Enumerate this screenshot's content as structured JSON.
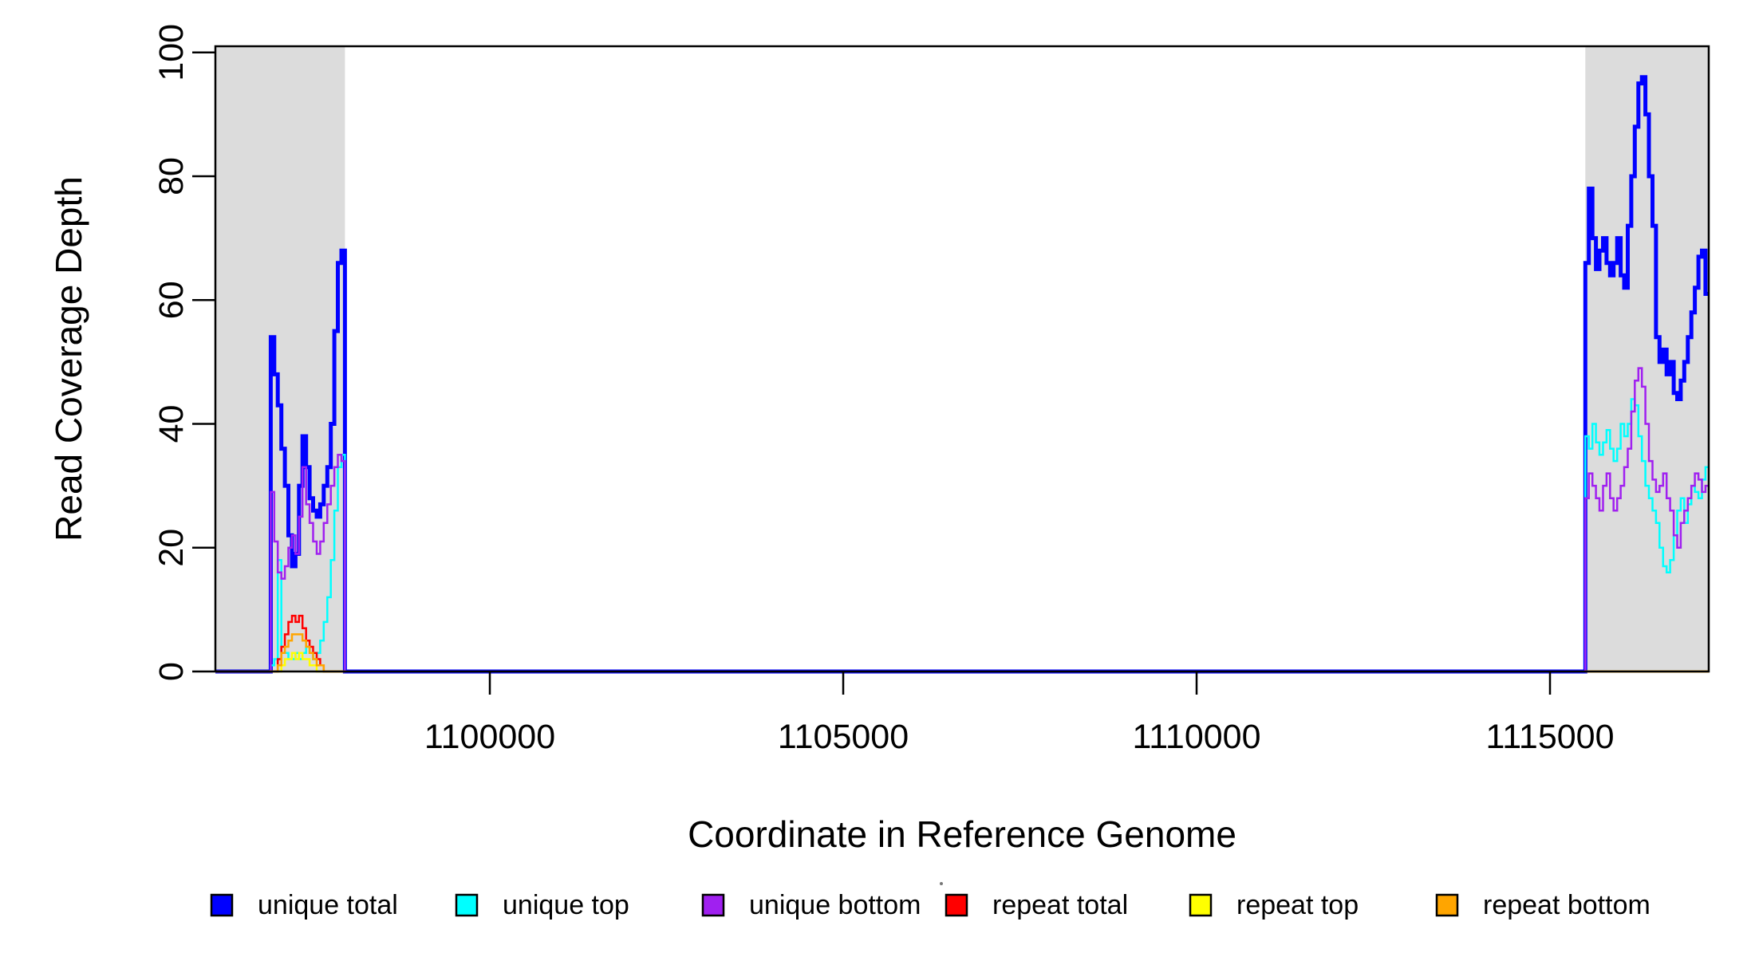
{
  "figure": {
    "background": "#ffffff",
    "plot_box_color": "#000000",
    "shade_color": "#DCDCDC"
  },
  "chart_data": {
    "type": "line",
    "subtype": "step",
    "title": "",
    "xlabel": "Coordinate in Reference Genome",
    "ylabel": "Read Coverage Depth",
    "xlim": [
      1096117,
      1117246
    ],
    "ylim": [
      0,
      101
    ],
    "xticks": [
      1100000,
      1105000,
      1110000,
      1115000
    ],
    "yticks": [
      0,
      20,
      40,
      60,
      80,
      100
    ],
    "grid": false,
    "box": true,
    "legend_position": "bottom",
    "bin_size": 50,
    "shaded_regions": [
      {
        "start": 1096117,
        "end": 1097950
      },
      {
        "start": 1115500,
        "end": 1117246
      }
    ],
    "series": [
      {
        "name": "unique total",
        "color": "#0000FF",
        "line_width": 5,
        "draw": "full",
        "segments": [
          {
            "start": 1096900,
            "values": [
              54,
              48,
              43,
              36,
              30,
              22,
              17,
              19,
              30,
              38,
              33,
              28,
              26,
              25,
              27,
              30,
              33,
              40,
              55,
              66,
              68
            ]
          },
          {
            "start": 1115500,
            "values": [
              66,
              78,
              70,
              65,
              68,
              70,
              66,
              64,
              66,
              70,
              64,
              62,
              72,
              80,
              88,
              95,
              96,
              90,
              80,
              72,
              54,
              50,
              52,
              48,
              50,
              45,
              44,
              47,
              50,
              54,
              58,
              62,
              67,
              68,
              61
            ]
          }
        ]
      },
      {
        "name": "unique top",
        "color": "#00FFFF",
        "line_width": 2.5,
        "draw": "full",
        "segments": [
          {
            "start": 1096900,
            "values": [
              1,
              2,
              18,
              3,
              3,
              2,
              2,
              3,
              2,
              3,
              4,
              3,
              2,
              3,
              5,
              8,
              12,
              18,
              26,
              33,
              35
            ]
          },
          {
            "start": 1115500,
            "values": [
              38,
              36,
              40,
              37,
              35,
              37,
              39,
              36,
              34,
              36,
              40,
              38,
              40,
              44,
              43,
              38,
              34,
              30,
              28,
              26,
              24,
              20,
              17,
              16,
              18,
              22,
              26,
              28,
              24,
              27,
              30,
              29,
              28,
              31,
              33
            ]
          }
        ]
      },
      {
        "name": "unique bottom",
        "color": "#A020F0",
        "line_width": 2.5,
        "draw": "full",
        "segments": [
          {
            "start": 1096900,
            "values": [
              29,
              21,
              16,
              15,
              17,
              20,
              22,
              19,
              25,
              33,
              27,
              24,
              21,
              19,
              21,
              24,
              27,
              30,
              33,
              35,
              34
            ]
          },
          {
            "start": 1115500,
            "values": [
              28,
              32,
              30,
              28,
              26,
              30,
              32,
              28,
              26,
              28,
              30,
              33,
              36,
              42,
              47,
              49,
              46,
              40,
              34,
              31,
              29,
              30,
              32,
              28,
              26,
              22,
              20,
              24,
              26,
              28,
              30,
              32,
              31,
              29,
              30
            ]
          }
        ]
      },
      {
        "name": "repeat total",
        "color": "#FF0000",
        "line_width": 2.5,
        "draw": "regions",
        "segments": [
          {
            "start": 1096900,
            "values": [
              0,
              0,
              2,
              4,
              6,
              8,
              9,
              8,
              9,
              7,
              5,
              4,
              3,
              2,
              1,
              0,
              0,
              0,
              0,
              0,
              0
            ]
          },
          {
            "start": 1115500,
            "values": [
              0,
              0,
              0,
              0,
              0,
              0,
              0,
              0,
              0,
              0,
              0,
              0,
              0,
              0,
              0,
              0,
              0,
              0,
              0,
              0,
              0,
              0,
              0,
              0,
              0,
              0,
              0,
              0,
              0,
              0,
              0,
              0,
              0,
              0,
              0
            ]
          }
        ]
      },
      {
        "name": "repeat top",
        "color": "#FFFF00",
        "line_width": 2.5,
        "draw": "regions",
        "segments": [
          {
            "start": 1096900,
            "values": [
              0,
              0,
              0,
              1,
              2,
              2,
              3,
              2,
              3,
              2,
              2,
              1,
              1,
              0,
              0,
              0,
              0,
              0,
              0,
              0,
              0
            ]
          },
          {
            "start": 1115500,
            "values": [
              0,
              0,
              0,
              0,
              0,
              0,
              0,
              0,
              0,
              0,
              0,
              0,
              0,
              0,
              0,
              0,
              0,
              0,
              0,
              0,
              0,
              0,
              0,
              0,
              0,
              0,
              0,
              0,
              0,
              0,
              0,
              0,
              0,
              0,
              0
            ]
          }
        ]
      },
      {
        "name": "repeat bottom",
        "color": "#FFA500",
        "line_width": 2.5,
        "draw": "regions",
        "segments": [
          {
            "start": 1096900,
            "values": [
              0,
              0,
              1,
              3,
              4,
              5,
              6,
              6,
              6,
              5,
              4,
              3,
              2,
              1,
              1,
              0,
              0,
              0,
              0,
              0,
              0
            ]
          },
          {
            "start": 1115500,
            "values": [
              0,
              0,
              0,
              0,
              0,
              0,
              0,
              0,
              0,
              0,
              0,
              0,
              0,
              0,
              0,
              0,
              0,
              0,
              0,
              0,
              0,
              0,
              0,
              0,
              0,
              0,
              0,
              0,
              0,
              0,
              0,
              0,
              0,
              0,
              0
            ]
          }
        ]
      }
    ],
    "legend": [
      {
        "label": "unique total",
        "color": "#0000FF"
      },
      {
        "label": "unique top",
        "color": "#00FFFF"
      },
      {
        "label": "unique bottom",
        "color": "#A020F0"
      },
      {
        "label": "repeat total",
        "color": "#FF0000"
      },
      {
        "label": "repeat top",
        "color": "#FFFF00"
      },
      {
        "label": "repeat bottom",
        "color": "#FFA500"
      }
    ]
  }
}
